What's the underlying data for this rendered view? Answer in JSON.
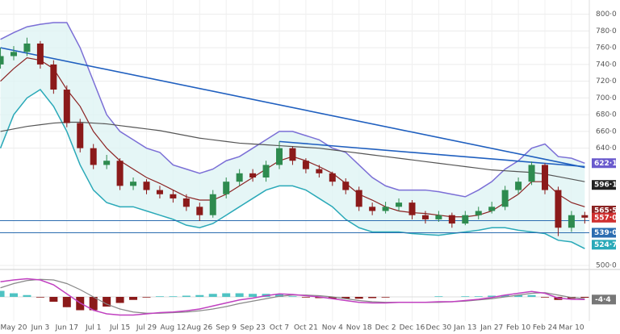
{
  "chart_data": {
    "type": "candlestick",
    "categories": [
      null,
      "May 20",
      null,
      "Jun 3",
      null,
      "Jun 17",
      null,
      "Jul 1",
      null,
      "Jul 15",
      null,
      "Jul 29",
      null,
      "Aug 12",
      null,
      "Aug 26",
      null,
      "Sep 9",
      null,
      "Sep 23",
      null,
      "Oct 7",
      null,
      "Oct 21",
      null,
      "Nov 4",
      null,
      "Nov 18",
      null,
      "Dec 2",
      null,
      "Dec 16",
      null,
      "Dec 30",
      null,
      "Jan 13",
      null,
      "Jan 27",
      null,
      "Feb 10",
      null,
      "Feb 24",
      null,
      "Mar 10",
      null
    ],
    "open": [
      740,
      750,
      755,
      765,
      740,
      710,
      670,
      640,
      620,
      625,
      595,
      600,
      590,
      585,
      580,
      570,
      560,
      585,
      600,
      610,
      605,
      620,
      640,
      625,
      615,
      610,
      600,
      590,
      570,
      565,
      570,
      575,
      560,
      555,
      560,
      550,
      560,
      565,
      570,
      590,
      600,
      620,
      590,
      545,
      560
    ],
    "high": [
      760,
      762,
      772,
      768,
      745,
      715,
      675,
      645,
      632,
      628,
      605,
      603,
      595,
      590,
      585,
      575,
      590,
      605,
      615,
      615,
      625,
      648,
      642,
      628,
      620,
      612,
      604,
      594,
      575,
      576,
      580,
      578,
      565,
      565,
      563,
      565,
      570,
      576,
      595,
      605,
      624,
      622,
      594,
      565,
      564
    ],
    "low": [
      735,
      745,
      750,
      735,
      705,
      665,
      635,
      615,
      615,
      590,
      590,
      585,
      580,
      575,
      565,
      553,
      557,
      580,
      595,
      600,
      600,
      615,
      620,
      610,
      605,
      595,
      585,
      565,
      560,
      562,
      565,
      555,
      550,
      552,
      545,
      548,
      555,
      562,
      566,
      585,
      596,
      585,
      535,
      540,
      550
    ],
    "close": [
      750,
      755,
      765,
      740,
      710,
      670,
      640,
      620,
      625,
      595,
      600,
      590,
      585,
      580,
      570,
      560,
      585,
      600,
      610,
      605,
      620,
      640,
      625,
      615,
      610,
      600,
      590,
      570,
      565,
      570,
      575,
      560,
      555,
      560,
      550,
      560,
      565,
      570,
      590,
      600,
      620,
      590,
      545,
      560,
      557
    ],
    "up_color": "#2e8b4f",
    "down_color": "#8b1a1a",
    "band": {
      "color": "#7b6fd6",
      "lower_color": "#2aa9b8",
      "fill": "#dff4f4",
      "upper": [
        770,
        778,
        785,
        788,
        790,
        790,
        760,
        720,
        680,
        660,
        650,
        640,
        635,
        620,
        615,
        610,
        615,
        625,
        630,
        640,
        650,
        660,
        660,
        655,
        650,
        640,
        635,
        620,
        605,
        595,
        590,
        590,
        590,
        588,
        585,
        582,
        590,
        600,
        615,
        625,
        640,
        645,
        630,
        628,
        622
      ],
      "lower": [
        640,
        680,
        700,
        710,
        690,
        660,
        620,
        590,
        575,
        570,
        570,
        565,
        560,
        555,
        548,
        545,
        550,
        560,
        570,
        580,
        590,
        595,
        595,
        590,
        580,
        570,
        555,
        545,
        540,
        540,
        540,
        538,
        537,
        536,
        538,
        540,
        542,
        545,
        545,
        542,
        540,
        538,
        530,
        528,
        520
      ]
    },
    "lines": [
      {
        "color": "#8b2323",
        "values": [
          720,
          735,
          748,
          745,
          735,
          710,
          690,
          660,
          640,
          625,
          615,
          605,
          598,
          590,
          582,
          578,
          578,
          585,
          595,
          605,
          615,
          625,
          630,
          625,
          618,
          610,
          598,
          585,
          578,
          570,
          565,
          563,
          562,
          560,
          558,
          558,
          560,
          565,
          575,
          585,
          600,
          600,
          585,
          575,
          570
        ]
      },
      {
        "color": "#555555",
        "values": [
          660,
          663,
          666,
          668,
          670,
          671,
          671,
          670,
          669,
          667,
          665,
          663,
          661,
          658,
          655,
          652,
          650,
          648,
          646,
          645,
          644,
          643,
          642,
          641,
          640,
          638,
          636,
          634,
          632,
          630,
          628,
          626,
          624,
          622,
          620,
          618,
          616,
          614,
          613,
          612,
          611,
          609,
          606,
          603,
          600
        ]
      }
    ],
    "trendlines": [
      {
        "color": "#1f5fbf",
        "x": [
          0,
          44
        ],
        "y": [
          760,
          617
        ]
      },
      {
        "color": "#1f5fbf",
        "x": [
          21,
          44
        ],
        "y": [
          648,
          618
        ]
      }
    ],
    "hlines": [
      {
        "color": "#2b6cb0",
        "value": 553.5
      },
      {
        "color": "#2b6cb0",
        "value": 539.0
      }
    ],
    "ylim": [
      499,
      817
    ],
    "yticks": [
      {
        "value": 800,
        "label": "800·0"
      },
      {
        "value": 780,
        "label": "780·0"
      },
      {
        "value": 760,
        "label": "760·0"
      },
      {
        "value": 740,
        "label": "740·0"
      },
      {
        "value": 720,
        "label": "720·0"
      },
      {
        "value": 700,
        "label": "700·0"
      },
      {
        "value": 680,
        "label": "680·0"
      },
      {
        "value": 660,
        "label": "660·0"
      },
      {
        "value": 640,
        "label": "640·0"
      },
      {
        "value": 500,
        "label": "500·0"
      }
    ],
    "price_tags": [
      {
        "value": 622.1,
        "label": "622·1",
        "color": "#6a5acd"
      },
      {
        "value": 596.1,
        "label": "596·1",
        "color": "#222222"
      },
      {
        "value": 565.5,
        "label": "565·5",
        "color": "#8b2323"
      },
      {
        "value": 557.0,
        "label": "557·0",
        "color": "#d03030"
      },
      {
        "value": 539.0,
        "label": "539·0",
        "color": "#2b6cb0"
      },
      {
        "value": 524.7,
        "label": "524·7",
        "color": "#2aa9b8"
      }
    ],
    "grid": true,
    "macd": {
      "ylim": [
        -40,
        40
      ],
      "hist": [
        10,
        6,
        3,
        -1,
        -8,
        -17,
        -22,
        -22,
        -16,
        -10,
        -5,
        -1,
        1,
        1,
        2,
        3,
        5,
        6,
        6,
        5,
        5,
        4,
        1,
        -1,
        -2,
        -3,
        -3,
        -3,
        -2,
        -1,
        0,
        0,
        0,
        1,
        0,
        1,
        1,
        2,
        3,
        3,
        3,
        -1,
        -5,
        -3,
        -1.4
      ],
      "hist_up": "#4fc3c3",
      "hist_down": "#8b1a1a",
      "macd": {
        "color": "#c040c0",
        "values": [
          25,
          28,
          30,
          28,
          20,
          5,
          -10,
          -22,
          -28,
          -30,
          -30,
          -28,
          -26,
          -25,
          -23,
          -20,
          -15,
          -10,
          -5,
          -2,
          2,
          5,
          4,
          2,
          0,
          -3,
          -6,
          -9,
          -10,
          -10,
          -9,
          -9,
          -9,
          -8,
          -8,
          -6,
          -4,
          -1,
          3,
          6,
          9,
          6,
          -2,
          -4,
          -4.4
        ]
      },
      "signal": {
        "color": "#888888",
        "values": [
          15,
          22,
          27,
          29,
          28,
          22,
          12,
          0,
          -12,
          -20,
          -25,
          -27,
          -27,
          -26,
          -25,
          -23,
          -20,
          -16,
          -11,
          -7,
          -3,
          1,
          3,
          3,
          2,
          0,
          -3,
          -6,
          -8,
          -9,
          -9,
          -9,
          -9,
          -9,
          -8,
          -7,
          -5,
          -3,
          0,
          3,
          6,
          7,
          3,
          -1,
          -3
        ]
      },
      "tag": {
        "value": -4.4,
        "label": "-4·4",
        "color": "#777777"
      }
    }
  }
}
